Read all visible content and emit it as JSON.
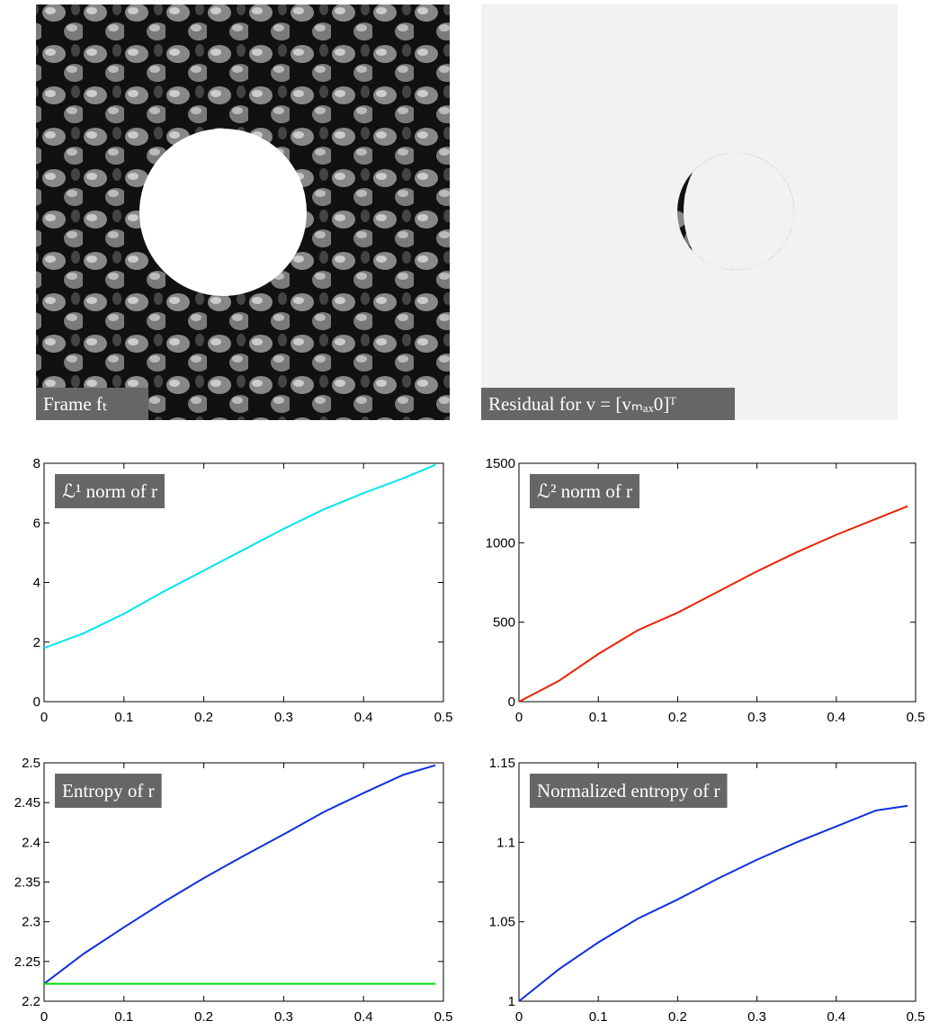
{
  "images": [
    {
      "label": "Frame fₜ"
    },
    {
      "label": "Residual for v = [vₘₐₓ0]ᵀ"
    }
  ],
  "chart_data": [
    {
      "type": "line",
      "annotation": "ℒ¹ norm of r",
      "x": [
        0,
        0.05,
        0.1,
        0.15,
        0.2,
        0.25,
        0.3,
        0.35,
        0.4,
        0.45,
        0.49
      ],
      "series": [
        {
          "color": "#00e5ee",
          "values": [
            1.8,
            2.3,
            2.95,
            3.7,
            4.4,
            5.1,
            5.8,
            6.45,
            7.0,
            7.5,
            7.95
          ]
        }
      ],
      "xlim": [
        0,
        0.5
      ],
      "xticks": [
        0,
        0.1,
        0.2,
        0.3,
        0.4,
        0.5
      ],
      "ylim": [
        0,
        8
      ],
      "yticks": [
        0,
        2,
        4,
        6,
        8
      ]
    },
    {
      "type": "line",
      "annotation": "ℒ² norm of r",
      "x": [
        0,
        0.05,
        0.1,
        0.15,
        0.2,
        0.25,
        0.3,
        0.35,
        0.4,
        0.45,
        0.49
      ],
      "series": [
        {
          "color": "#ee2200",
          "values": [
            0,
            130,
            300,
            450,
            560,
            690,
            820,
            940,
            1050,
            1150,
            1230
          ]
        }
      ],
      "xlim": [
        0,
        0.5
      ],
      "xticks": [
        0,
        0.1,
        0.2,
        0.3,
        0.4,
        0.5
      ],
      "ylim": [
        0,
        1500
      ],
      "yticks": [
        0,
        500,
        1000,
        1500
      ]
    },
    {
      "type": "line",
      "annotation": "Entropy of r",
      "x": [
        0,
        0.05,
        0.1,
        0.15,
        0.2,
        0.25,
        0.3,
        0.35,
        0.4,
        0.45,
        0.49
      ],
      "series": [
        {
          "color": "#1030e0",
          "values": [
            2.222,
            2.26,
            2.293,
            2.325,
            2.355,
            2.383,
            2.41,
            2.438,
            2.462,
            2.485,
            2.497
          ]
        },
        {
          "color": "#00dd00",
          "values": [
            2.222,
            2.222,
            2.222,
            2.222,
            2.222,
            2.222,
            2.222,
            2.222,
            2.222,
            2.222,
            2.222
          ]
        }
      ],
      "xlim": [
        0,
        0.5
      ],
      "xticks": [
        0,
        0.1,
        0.2,
        0.3,
        0.4,
        0.5
      ],
      "ylim": [
        2.2,
        2.5
      ],
      "yticks": [
        2.2,
        2.25,
        2.3,
        2.35,
        2.4,
        2.45,
        2.5
      ]
    },
    {
      "type": "line",
      "annotation": "Normalized entropy of r",
      "x": [
        0,
        0.05,
        0.1,
        0.15,
        0.2,
        0.25,
        0.3,
        0.35,
        0.4,
        0.45,
        0.49
      ],
      "series": [
        {
          "color": "#1030e0",
          "values": [
            1.0,
            1.02,
            1.037,
            1.052,
            1.064,
            1.077,
            1.089,
            1.1,
            1.11,
            1.12,
            1.123
          ]
        }
      ],
      "xlim": [
        0,
        0.5
      ],
      "xticks": [
        0,
        0.1,
        0.2,
        0.3,
        0.4,
        0.5
      ],
      "ylim": [
        1,
        1.15
      ],
      "yticks": [
        1,
        1.05,
        1.1,
        1.15
      ]
    }
  ]
}
